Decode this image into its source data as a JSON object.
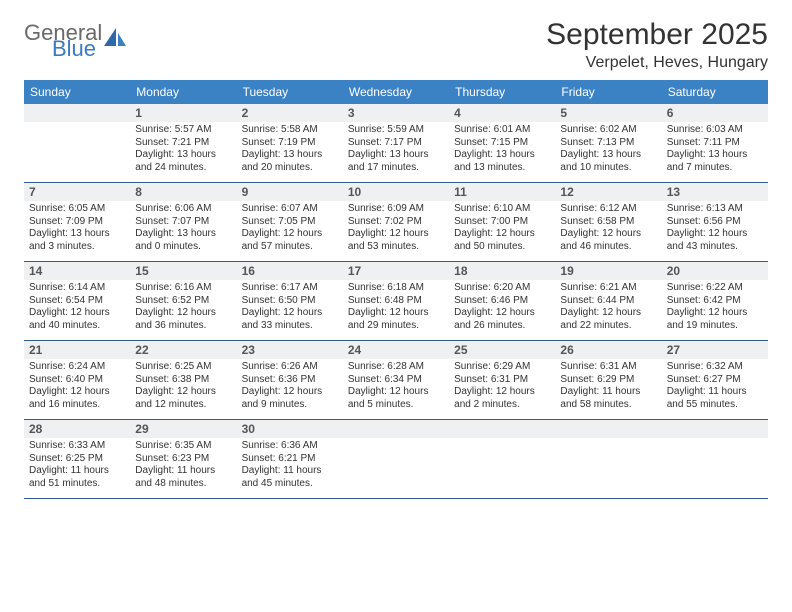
{
  "brand": {
    "general": "General",
    "blue": "Blue"
  },
  "title": "September 2025",
  "location": "Verpelet, Heves, Hungary",
  "colors": {
    "header_bg": "#3a82c4",
    "band_bg": "#eef0f1",
    "row_border": "#2f5e8a",
    "title_color": "#333333"
  },
  "dow": [
    "Sunday",
    "Monday",
    "Tuesday",
    "Wednesday",
    "Thursday",
    "Friday",
    "Saturday"
  ],
  "weeks": [
    [
      null,
      {
        "n": "1",
        "sr": "Sunrise: 5:57 AM",
        "ss": "Sunset: 7:21 PM",
        "d1": "Daylight: 13 hours",
        "d2": "and 24 minutes."
      },
      {
        "n": "2",
        "sr": "Sunrise: 5:58 AM",
        "ss": "Sunset: 7:19 PM",
        "d1": "Daylight: 13 hours",
        "d2": "and 20 minutes."
      },
      {
        "n": "3",
        "sr": "Sunrise: 5:59 AM",
        "ss": "Sunset: 7:17 PM",
        "d1": "Daylight: 13 hours",
        "d2": "and 17 minutes."
      },
      {
        "n": "4",
        "sr": "Sunrise: 6:01 AM",
        "ss": "Sunset: 7:15 PM",
        "d1": "Daylight: 13 hours",
        "d2": "and 13 minutes."
      },
      {
        "n": "5",
        "sr": "Sunrise: 6:02 AM",
        "ss": "Sunset: 7:13 PM",
        "d1": "Daylight: 13 hours",
        "d2": "and 10 minutes."
      },
      {
        "n": "6",
        "sr": "Sunrise: 6:03 AM",
        "ss": "Sunset: 7:11 PM",
        "d1": "Daylight: 13 hours",
        "d2": "and 7 minutes."
      }
    ],
    [
      {
        "n": "7",
        "sr": "Sunrise: 6:05 AM",
        "ss": "Sunset: 7:09 PM",
        "d1": "Daylight: 13 hours",
        "d2": "and 3 minutes."
      },
      {
        "n": "8",
        "sr": "Sunrise: 6:06 AM",
        "ss": "Sunset: 7:07 PM",
        "d1": "Daylight: 13 hours",
        "d2": "and 0 minutes."
      },
      {
        "n": "9",
        "sr": "Sunrise: 6:07 AM",
        "ss": "Sunset: 7:05 PM",
        "d1": "Daylight: 12 hours",
        "d2": "and 57 minutes."
      },
      {
        "n": "10",
        "sr": "Sunrise: 6:09 AM",
        "ss": "Sunset: 7:02 PM",
        "d1": "Daylight: 12 hours",
        "d2": "and 53 minutes."
      },
      {
        "n": "11",
        "sr": "Sunrise: 6:10 AM",
        "ss": "Sunset: 7:00 PM",
        "d1": "Daylight: 12 hours",
        "d2": "and 50 minutes."
      },
      {
        "n": "12",
        "sr": "Sunrise: 6:12 AM",
        "ss": "Sunset: 6:58 PM",
        "d1": "Daylight: 12 hours",
        "d2": "and 46 minutes."
      },
      {
        "n": "13",
        "sr": "Sunrise: 6:13 AM",
        "ss": "Sunset: 6:56 PM",
        "d1": "Daylight: 12 hours",
        "d2": "and 43 minutes."
      }
    ],
    [
      {
        "n": "14",
        "sr": "Sunrise: 6:14 AM",
        "ss": "Sunset: 6:54 PM",
        "d1": "Daylight: 12 hours",
        "d2": "and 40 minutes."
      },
      {
        "n": "15",
        "sr": "Sunrise: 6:16 AM",
        "ss": "Sunset: 6:52 PM",
        "d1": "Daylight: 12 hours",
        "d2": "and 36 minutes."
      },
      {
        "n": "16",
        "sr": "Sunrise: 6:17 AM",
        "ss": "Sunset: 6:50 PM",
        "d1": "Daylight: 12 hours",
        "d2": "and 33 minutes."
      },
      {
        "n": "17",
        "sr": "Sunrise: 6:18 AM",
        "ss": "Sunset: 6:48 PM",
        "d1": "Daylight: 12 hours",
        "d2": "and 29 minutes."
      },
      {
        "n": "18",
        "sr": "Sunrise: 6:20 AM",
        "ss": "Sunset: 6:46 PM",
        "d1": "Daylight: 12 hours",
        "d2": "and 26 minutes."
      },
      {
        "n": "19",
        "sr": "Sunrise: 6:21 AM",
        "ss": "Sunset: 6:44 PM",
        "d1": "Daylight: 12 hours",
        "d2": "and 22 minutes."
      },
      {
        "n": "20",
        "sr": "Sunrise: 6:22 AM",
        "ss": "Sunset: 6:42 PM",
        "d1": "Daylight: 12 hours",
        "d2": "and 19 minutes."
      }
    ],
    [
      {
        "n": "21",
        "sr": "Sunrise: 6:24 AM",
        "ss": "Sunset: 6:40 PM",
        "d1": "Daylight: 12 hours",
        "d2": "and 16 minutes."
      },
      {
        "n": "22",
        "sr": "Sunrise: 6:25 AM",
        "ss": "Sunset: 6:38 PM",
        "d1": "Daylight: 12 hours",
        "d2": "and 12 minutes."
      },
      {
        "n": "23",
        "sr": "Sunrise: 6:26 AM",
        "ss": "Sunset: 6:36 PM",
        "d1": "Daylight: 12 hours",
        "d2": "and 9 minutes."
      },
      {
        "n": "24",
        "sr": "Sunrise: 6:28 AM",
        "ss": "Sunset: 6:34 PM",
        "d1": "Daylight: 12 hours",
        "d2": "and 5 minutes."
      },
      {
        "n": "25",
        "sr": "Sunrise: 6:29 AM",
        "ss": "Sunset: 6:31 PM",
        "d1": "Daylight: 12 hours",
        "d2": "and 2 minutes."
      },
      {
        "n": "26",
        "sr": "Sunrise: 6:31 AM",
        "ss": "Sunset: 6:29 PM",
        "d1": "Daylight: 11 hours",
        "d2": "and 58 minutes."
      },
      {
        "n": "27",
        "sr": "Sunrise: 6:32 AM",
        "ss": "Sunset: 6:27 PM",
        "d1": "Daylight: 11 hours",
        "d2": "and 55 minutes."
      }
    ],
    [
      {
        "n": "28",
        "sr": "Sunrise: 6:33 AM",
        "ss": "Sunset: 6:25 PM",
        "d1": "Daylight: 11 hours",
        "d2": "and 51 minutes."
      },
      {
        "n": "29",
        "sr": "Sunrise: 6:35 AM",
        "ss": "Sunset: 6:23 PM",
        "d1": "Daylight: 11 hours",
        "d2": "and 48 minutes."
      },
      {
        "n": "30",
        "sr": "Sunrise: 6:36 AM",
        "ss": "Sunset: 6:21 PM",
        "d1": "Daylight: 11 hours",
        "d2": "and 45 minutes."
      },
      null,
      null,
      null,
      null
    ]
  ]
}
